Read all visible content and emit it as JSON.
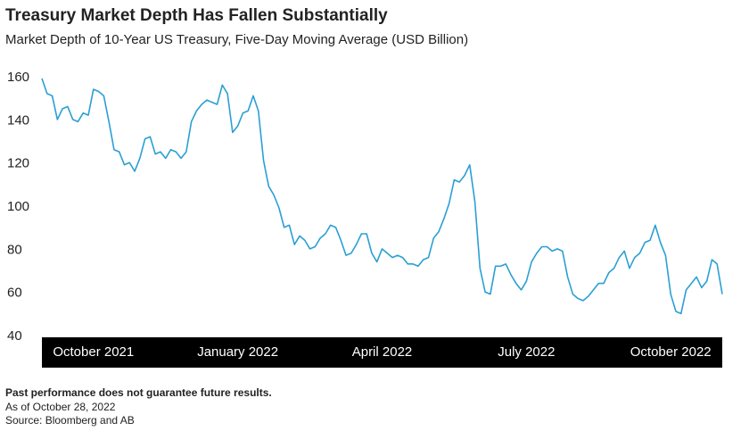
{
  "chart_data": {
    "type": "line",
    "title": "Treasury Market Depth Has Fallen Substantially",
    "subtitle": "Market Depth of 10-Year US Treasury, Five-Day Moving Average (USD Billion)",
    "notes": [
      "Past performance does not guarantee future results.",
      "As of October 28, 2022",
      "Source: Bloomberg and AB"
    ],
    "categories": [
      null,
      null,
      null,
      null,
      null,
      null,
      null,
      null,
      null,
      null,
      "October 2021",
      null,
      null,
      null,
      null,
      null,
      null,
      null,
      null,
      null,
      null,
      null,
      null,
      null,
      null,
      null,
      null,
      null,
      null,
      null,
      null,
      null,
      null,
      null,
      null,
      null,
      null,
      null,
      "January 2022",
      null,
      null,
      null,
      null,
      null,
      null,
      null,
      null,
      null,
      null,
      null,
      null,
      null,
      null,
      null,
      null,
      null,
      null,
      null,
      null,
      null,
      null,
      null,
      null,
      null,
      null,
      null,
      "April 2022",
      null,
      null,
      null,
      null,
      null,
      null,
      null,
      null,
      null,
      null,
      null,
      null,
      null,
      null,
      null,
      null,
      null,
      null,
      null,
      null,
      null,
      null,
      null,
      null,
      null,
      null,
      null,
      "July 2022",
      null,
      null,
      null,
      null,
      null,
      null,
      null,
      null,
      null,
      null,
      null,
      null,
      null,
      null,
      null,
      null,
      null,
      null,
      null,
      null,
      null,
      null,
      null,
      null,
      null,
      null,
      null,
      "October 2022",
      null,
      null,
      null,
      null,
      null,
      null,
      null,
      null,
      null,
      null
    ],
    "series": [
      {
        "name": "Market Depth",
        "color": "#2b9fd4",
        "values": [
          160,
          153,
          152,
          141,
          146,
          147,
          141,
          140,
          144,
          143,
          155,
          154,
          152,
          140,
          127,
          126,
          120,
          121,
          117,
          123,
          132,
          133,
          125,
          126,
          123,
          127,
          126,
          123,
          126,
          140,
          145,
          148,
          150,
          149,
          148,
          157,
          153,
          135,
          138,
          144,
          145,
          152,
          145,
          122,
          110,
          106,
          100,
          91,
          92,
          83,
          87,
          85,
          81,
          82,
          86,
          88,
          92,
          91,
          85,
          78,
          79,
          83,
          88,
          88,
          79,
          75,
          81,
          79,
          77,
          78,
          77,
          74,
          74,
          73,
          76,
          77,
          86,
          89,
          95,
          102,
          113,
          112,
          115,
          120,
          103,
          72,
          61,
          60,
          73,
          73,
          74,
          69,
          65,
          62,
          66,
          75,
          79,
          82,
          82,
          80,
          81,
          80,
          68,
          60,
          58,
          57,
          59,
          62,
          65,
          65,
          70,
          72,
          77,
          80,
          72,
          77,
          79,
          84,
          85,
          92,
          84,
          78,
          60,
          52,
          51,
          62,
          65,
          68,
          63,
          66,
          76,
          74,
          60
        ]
      }
    ],
    "ylim": [
      40,
      160
    ],
    "yticks": [
      40,
      60,
      80,
      100,
      120,
      140,
      160
    ],
    "grid": false
  }
}
